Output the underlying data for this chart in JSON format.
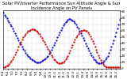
{
  "title": "Solar PV/Inverter Performance Sun Altitude Angle & Sun Incidence Angle on PV Panels",
  "background_color": "#ffffff",
  "grid_color": "#b0b0b0",
  "x_values": [
    0,
    1,
    2,
    3,
    4,
    5,
    6,
    7,
    8,
    9,
    10,
    11,
    12,
    13,
    14,
    15,
    16,
    17,
    18,
    19,
    20,
    21,
    22,
    23,
    24,
    25,
    26,
    27,
    28,
    29,
    30,
    31,
    32,
    33,
    34,
    35,
    36,
    37,
    38,
    39,
    40,
    41,
    42,
    43,
    44,
    45,
    46,
    47,
    48,
    49,
    50,
    51,
    52,
    53,
    54,
    55,
    56,
    57,
    58,
    59,
    60,
    61,
    62,
    63,
    64,
    65,
    66,
    67,
    68,
    69,
    70,
    71,
    72,
    73,
    74,
    75,
    76,
    77,
    78,
    79,
    80,
    81,
    82,
    83,
    84,
    85,
    86,
    87,
    88,
    89,
    90,
    91,
    92,
    93,
    94,
    95,
    96,
    97,
    98,
    99
  ],
  "blue_y": [
    88,
    85,
    82,
    79,
    76,
    73,
    70,
    67,
    63,
    59,
    56,
    52,
    48,
    45,
    41,
    38,
    34,
    31,
    28,
    25,
    22,
    20,
    18,
    16,
    14,
    13,
    12,
    11,
    10,
    10,
    10,
    10,
    11,
    12,
    13,
    14,
    16,
    18,
    20,
    23,
    26,
    29,
    33,
    37,
    41,
    45,
    49,
    53,
    57,
    61,
    65,
    68,
    71,
    73,
    75,
    77,
    78,
    78,
    77,
    76,
    74,
    72,
    69,
    66,
    63,
    60,
    56,
    52,
    48,
    44,
    40,
    36,
    32,
    28,
    24,
    21,
    18,
    15,
    13,
    11,
    9,
    8,
    8,
    8,
    9,
    10,
    12,
    14,
    17,
    20,
    24,
    29,
    34,
    39,
    45,
    51,
    57,
    63,
    70,
    77
  ],
  "red_y": [
    2,
    2,
    3,
    4,
    5,
    7,
    9,
    12,
    15,
    18,
    22,
    26,
    30,
    34,
    38,
    42,
    46,
    49,
    52,
    55,
    57,
    59,
    60,
    61,
    62,
    62,
    62,
    61,
    60,
    58,
    56,
    54,
    51,
    48,
    45,
    42,
    38,
    35,
    31,
    28,
    24,
    21,
    18,
    15,
    13,
    11,
    9,
    8,
    8,
    8,
    9,
    10,
    12,
    14,
    17,
    20,
    24,
    28,
    33,
    37,
    42,
    46,
    49,
    52,
    55,
    57,
    59,
    60,
    61,
    61,
    60,
    59,
    57,
    54,
    51,
    47,
    43,
    39,
    35,
    30,
    26,
    21,
    17,
    13,
    10,
    7,
    5,
    3,
    2,
    2,
    2,
    2,
    2,
    2,
    2,
    2,
    2,
    2,
    2,
    2
  ],
  "x_tick_positions": [
    0,
    4,
    8,
    12,
    16,
    20,
    24,
    28,
    32,
    36,
    40,
    44,
    48,
    52,
    56,
    60,
    64,
    68,
    72,
    76,
    80,
    84,
    88,
    92,
    96
  ],
  "x_tick_labels": [
    "6:4",
    "6:2",
    "7:0",
    "7:3",
    "7:5",
    "8:2",
    "8:5",
    "9:1",
    "9:4",
    "10:1",
    "10:3",
    "11:0",
    "11:2",
    "11:5",
    "12:2",
    "12:4",
    "13:1",
    "13:4",
    "14:0",
    "14:3",
    "15:0",
    "15:2",
    "15:5",
    "16:2",
    "16:4"
  ],
  "y_right_ticks": [
    0,
    10,
    20,
    30,
    40,
    50,
    60,
    70,
    80,
    90
  ],
  "y_right_labels": [
    "0",
    "10",
    "20",
    "30",
    "40",
    "50",
    "60",
    "70",
    "80",
    "90"
  ],
  "ylim": [
    0,
    92
  ],
  "xlim": [
    0,
    99
  ],
  "blue_color": "#0000cc",
  "red_color": "#cc0000",
  "title_fontsize": 3.8,
  "tick_fontsize": 3.0,
  "dot_size": 1.2
}
